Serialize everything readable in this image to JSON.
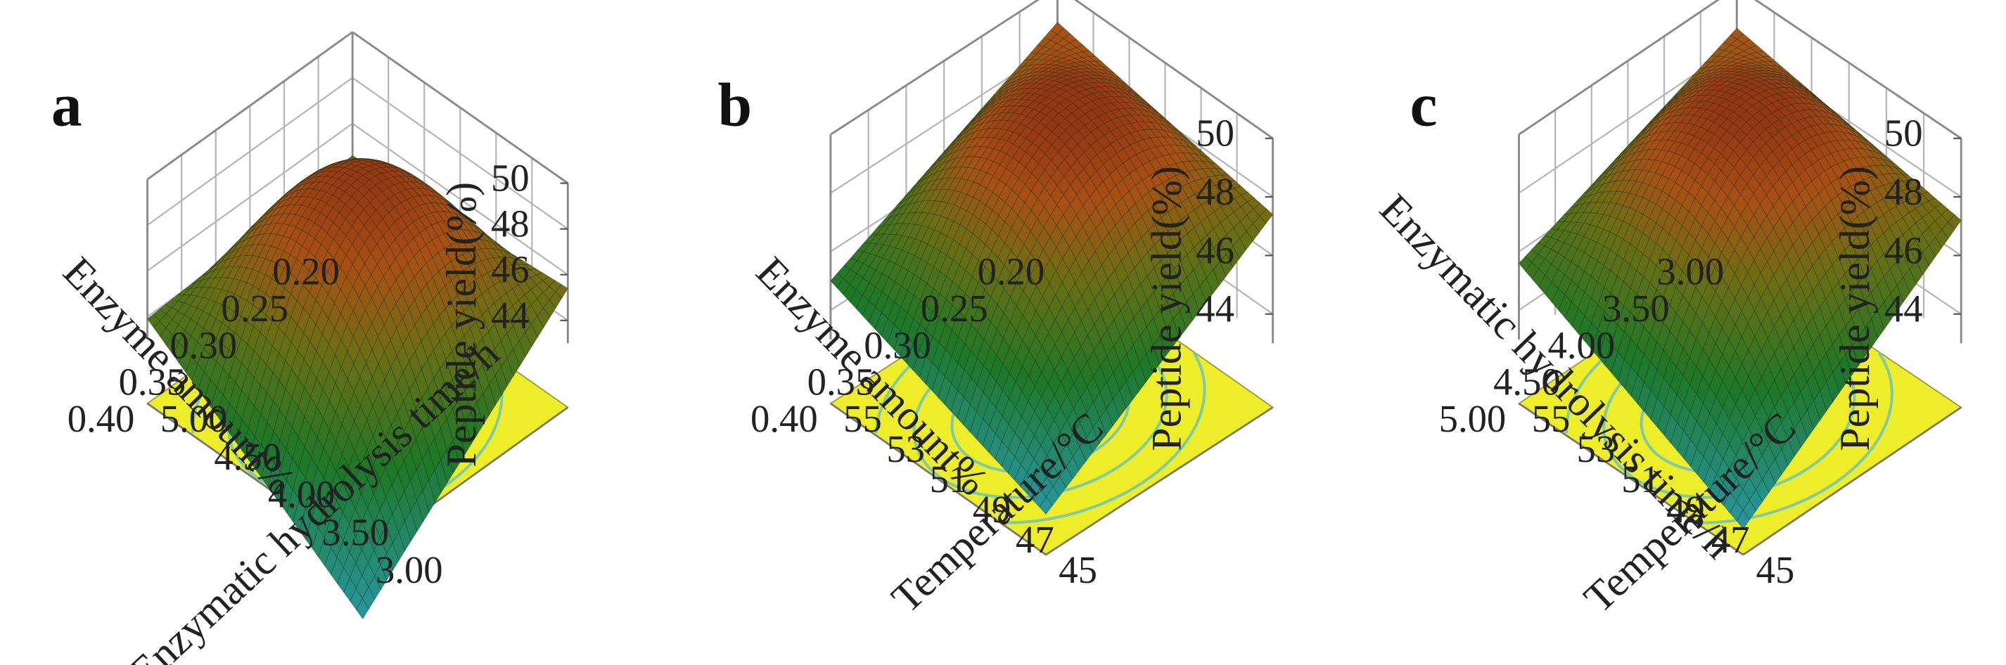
{
  "chart_data": [
    {
      "type": "surface3d",
      "panel": "a",
      "zlabel": "Peptide yield(%)",
      "zticks": [
        "44",
        "46",
        "48",
        "50"
      ],
      "zlim": [
        43,
        50
      ],
      "left_axis": {
        "label": "Enzyme  amount%",
        "ticks": [
          "0.20",
          "0.25",
          "0.30",
          "0.35",
          "0.40"
        ],
        "range": [
          0.2,
          0.4
        ]
      },
      "right_axis": {
        "label": "Enzymatic  hydrolysis time/h",
        "ticks": [
          "3.00",
          "3.50",
          "4.00",
          "4.50",
          "5.00"
        ],
        "range": [
          3.0,
          5.0
        ]
      },
      "surface": {
        "peak_value": 49.4,
        "corner_values": {
          "back": 44.6,
          "left": 43.9,
          "right": 45.4,
          "front": 37.4
        }
      },
      "floor_contours": 4
    },
    {
      "type": "surface3d",
      "panel": "b",
      "zlabel": "Peptide yield(%)",
      "zticks": [
        "44",
        "46",
        "48",
        "50"
      ],
      "zlim": [
        43,
        50
      ],
      "left_axis": {
        "label": "Enzyme  amount%",
        "ticks": [
          "0.20",
          "0.25",
          "0.30",
          "0.35",
          "0.40"
        ],
        "range": [
          0.2,
          0.4
        ]
      },
      "right_axis": {
        "label": "Temperature/°C",
        "ticks": [
          "45",
          "47",
          "49",
          "51",
          "53",
          "55"
        ],
        "range": [
          45,
          55
        ]
      },
      "surface": {
        "peak_value": 49.9,
        "corner_values": {
          "back": 48.8,
          "left": 45.0,
          "right": 47.4,
          "front": 42.2
        }
      },
      "floor_contours": 4
    },
    {
      "type": "surface3d",
      "panel": "c",
      "zlabel": "Peptide yield(%)",
      "zticks": [
        "44",
        "46",
        "48",
        "50"
      ],
      "zlim": [
        43,
        50
      ],
      "left_axis": {
        "label": "Enzymatic  hydrolysis time/h",
        "ticks": [
          "3.00",
          "3.50",
          "4.00",
          "4.50",
          "5.00"
        ],
        "range": [
          3.0,
          5.0
        ]
      },
      "right_axis": {
        "label": "Temperature/°C",
        "ticks": [
          "45",
          "47",
          "49",
          "51",
          "53",
          "55"
        ],
        "range": [
          45,
          55
        ]
      },
      "surface": {
        "peak_value": 50.0,
        "corner_values": {
          "back": 48.6,
          "left": 45.6,
          "right": 47.2,
          "front": 41.7
        }
      },
      "floor_contours": 4
    }
  ]
}
